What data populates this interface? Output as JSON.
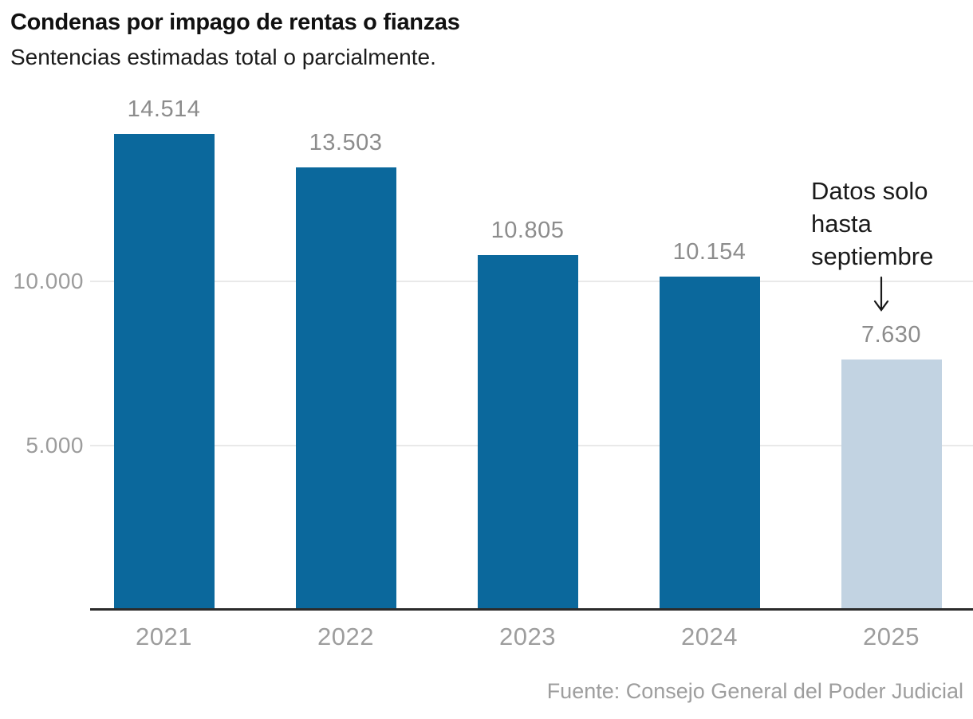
{
  "header": {
    "title": "Condenas por impago de rentas o fianzas",
    "subtitle": "Sentencias estimadas total o parcialmente."
  },
  "chart_data": {
    "type": "bar",
    "title": "Condenas por impago de rentas o fianzas",
    "subtitle": "Sentencias estimadas total o parcialmente.",
    "categories": [
      "2021",
      "2022",
      "2023",
      "2024",
      "2025"
    ],
    "values": [
      14514,
      13503,
      10805,
      10154,
      7630
    ],
    "value_labels": [
      "14.514",
      "13.503",
      "10.805",
      "10.154",
      "7.630"
    ],
    "bar_colors": [
      "#0b689c",
      "#0b689c",
      "#0b689c",
      "#0b689c",
      "#c2d3e2"
    ],
    "ylim": [
      0,
      14950
    ],
    "yticks": [
      {
        "value": 5000,
        "label": "5.000"
      },
      {
        "value": 10000,
        "label": "10.000"
      }
    ],
    "grid": true,
    "legend": "none",
    "annotation": {
      "lines": [
        "Datos solo",
        "hasta",
        "septiembre"
      ],
      "target_category": "2025"
    },
    "source": "Fuente: Consejo General del Poder Judicial"
  },
  "colors": {
    "bar_main": "#0b689c",
    "bar_partial": "#c2d3e2",
    "value_label": "#8c8c8c",
    "tick_label": "#9c9c9c",
    "gridline": "#e9e9e9",
    "axis": "#2b2b2b",
    "text_dark": "#1a1a1a",
    "source_gray": "#9e9e9e"
  }
}
